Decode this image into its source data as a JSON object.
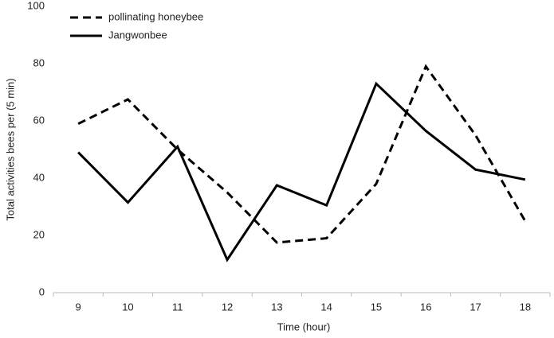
{
  "chart_data": {
    "type": "line",
    "x_label": "Time (hour)",
    "y_label": "Total activities bees per (5 min)",
    "categories": [
      "9",
      "10",
      "11",
      "12",
      "13",
      "14",
      "15",
      "16",
      "17",
      "18"
    ],
    "series": [
      {
        "name": "pollinating honeybee",
        "color": "#000000",
        "dash": "dashed",
        "values": [
          59,
          67.5,
          50,
          35,
          17.5,
          19,
          38,
          79,
          55,
          25
        ]
      },
      {
        "name": "Jangwonbee",
        "color": "#000000",
        "dash": "solid",
        "values": [
          49,
          31.5,
          51,
          11.5,
          37.5,
          30.5,
          73,
          56.5,
          43,
          39.5
        ]
      }
    ],
    "ylim": [
      0,
      100
    ],
    "yticks": [
      0,
      20,
      40,
      60,
      80,
      100
    ],
    "grid": false,
    "legend": "upper left"
  }
}
